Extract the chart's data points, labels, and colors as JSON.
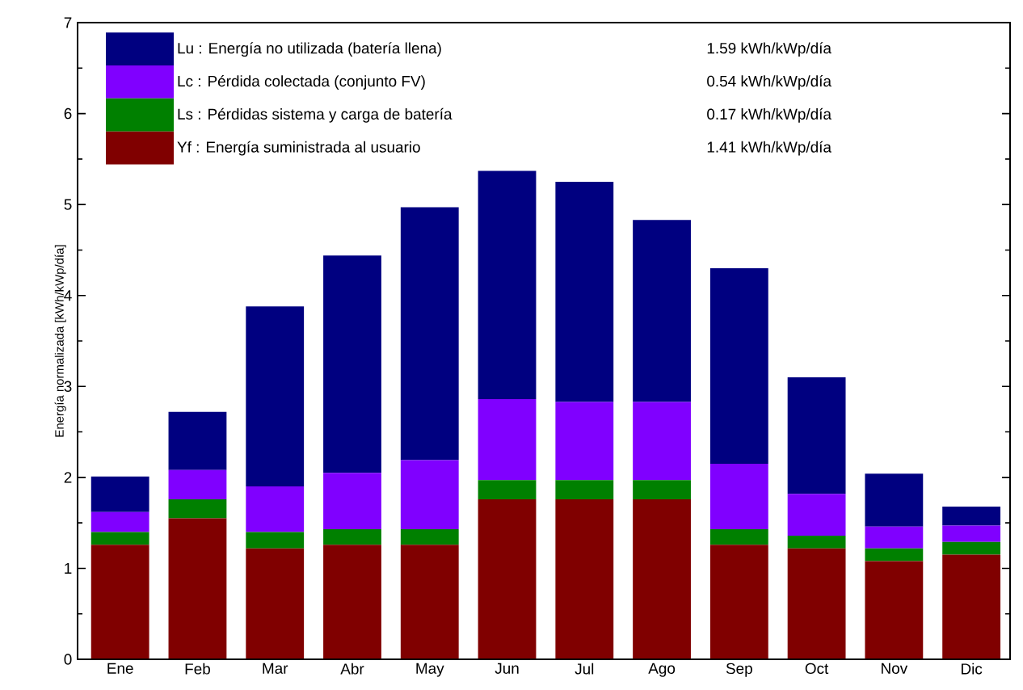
{
  "chart_data": {
    "type": "bar",
    "stacked": true,
    "ylabel": "Energía normalizada [kWh/kWp/día]",
    "categories": [
      "Ene",
      "Feb",
      "Mar",
      "Abr",
      "May",
      "Jun",
      "Jul",
      "Ago",
      "Sep",
      "Oct",
      "Nov",
      "Dic"
    ],
    "series": [
      {
        "name": "Yf : Energía suministrada al usuario",
        "color": "#800000",
        "values": [
          1.26,
          1.55,
          1.22,
          1.26,
          1.26,
          1.76,
          1.76,
          1.76,
          1.26,
          1.22,
          1.08,
          1.15
        ]
      },
      {
        "name": "Ls : Pérdidas sistema y carga de batería",
        "color": "#008000",
        "values": [
          0.14,
          0.21,
          0.18,
          0.17,
          0.17,
          0.21,
          0.21,
          0.21,
          0.17,
          0.14,
          0.14,
          0.14
        ]
      },
      {
        "name": "Lc : Pérdida colectada (conjunto FV)",
        "color": "#8000ff",
        "values": [
          0.22,
          0.32,
          0.5,
          0.62,
          0.76,
          0.89,
          0.86,
          0.86,
          0.72,
          0.46,
          0.24,
          0.18
        ]
      },
      {
        "name": "Lu : Energía no utilizada (batería llena)",
        "color": "#000080",
        "values": [
          0.39,
          0.64,
          1.98,
          2.39,
          2.78,
          2.51,
          2.42,
          2.0,
          2.15,
          1.28,
          0.58,
          0.21
        ]
      }
    ],
    "annotations": [
      "1.41 kWh/kWp/día",
      "0.17 kWh/kWp/día",
      "0.54 kWh/kWp/día",
      "1.59 kWh/kWp/día"
    ],
    "ylim": [
      0,
      7
    ],
    "yticks": [
      0,
      1,
      2,
      3,
      4,
      5,
      6,
      7
    ],
    "legend": "top left"
  }
}
